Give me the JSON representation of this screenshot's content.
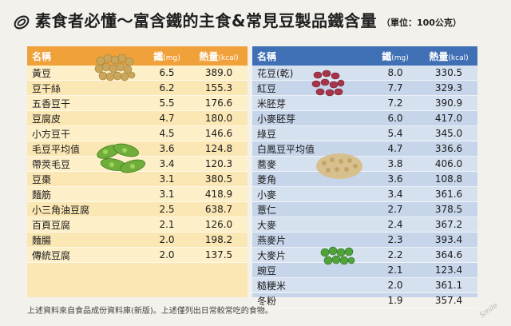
{
  "title": {
    "main": "素食者必懂～富含鐵的主食&常見豆製品鐵含量",
    "unit": "（單位：100公克）"
  },
  "headers": {
    "name": "名稱",
    "iron": "鐵",
    "iron_unit": "(mg)",
    "kcal": "熱量",
    "kcal_unit": "(kcal)"
  },
  "left": [
    {
      "name": "黃豆",
      "iron": "6.5",
      "kcal": "389.0"
    },
    {
      "name": "豆干絲",
      "iron": "6.2",
      "kcal": "155.3"
    },
    {
      "name": "五香豆干",
      "iron": "5.5",
      "kcal": "176.6"
    },
    {
      "name": "豆腐皮",
      "iron": "4.7",
      "kcal": "180.0"
    },
    {
      "name": "小方豆干",
      "iron": "4.5",
      "kcal": "146.6"
    },
    {
      "name": "毛豆平均值",
      "iron": "3.6",
      "kcal": "124.8"
    },
    {
      "name": "帶莢毛豆",
      "iron": "3.4",
      "kcal": "120.3"
    },
    {
      "name": "豆棗",
      "iron": "3.1",
      "kcal": "380.5"
    },
    {
      "name": "麵筋",
      "iron": "3.1",
      "kcal": "418.9"
    },
    {
      "name": "小三角油豆腐",
      "iron": "2.5",
      "kcal": "638.7"
    },
    {
      "name": "百頁豆腐",
      "iron": "2.1",
      "kcal": "126.0"
    },
    {
      "name": "麵腸",
      "iron": "2.0",
      "kcal": "198.2"
    },
    {
      "name": "傳統豆腐",
      "iron": "2.0",
      "kcal": "137.5"
    }
  ],
  "right": [
    {
      "name": "花豆(乾)",
      "iron": "8.0",
      "kcal": "330.5"
    },
    {
      "name": "紅豆",
      "iron": "7.7",
      "kcal": "329.3"
    },
    {
      "name": "米胚芽",
      "iron": "7.2",
      "kcal": "390.9"
    },
    {
      "name": "小麥胚芽",
      "iron": "6.0",
      "kcal": "417.0"
    },
    {
      "name": "綠豆",
      "iron": "5.4",
      "kcal": "345.0"
    },
    {
      "name": "白鳳豆平均值",
      "iron": "4.7",
      "kcal": "336.6"
    },
    {
      "name": "蕎麥",
      "iron": "3.8",
      "kcal": "406.0"
    },
    {
      "name": "菱角",
      "iron": "3.6",
      "kcal": "108.8"
    },
    {
      "name": "小麥",
      "iron": "3.4",
      "kcal": "361.6"
    },
    {
      "name": "薏仁",
      "iron": "2.7",
      "kcal": "378.5"
    },
    {
      "name": "大麥",
      "iron": "2.4",
      "kcal": "367.2"
    },
    {
      "name": "燕麥片",
      "iron": "2.3",
      "kcal": "393.4"
    },
    {
      "name": "大麥片",
      "iron": "2.2",
      "kcal": "364.6"
    },
    {
      "name": "豌豆",
      "iron": "2.1",
      "kcal": "123.4"
    },
    {
      "name": "糙粳米",
      "iron": "2.0",
      "kcal": "361.1"
    },
    {
      "name": "冬粉",
      "iron": "1.9",
      "kcal": "357.4"
    }
  ],
  "footnote": "上述資料來自食品成份資料庫(新版)。上述僅列出日常較常吃的食物。",
  "watermark": "Smile",
  "colors": {
    "left_header": "#f0a13a",
    "left_body": "#fbe7b3",
    "right_header": "#3f6fb4",
    "right_body": "#c6d5e9"
  }
}
